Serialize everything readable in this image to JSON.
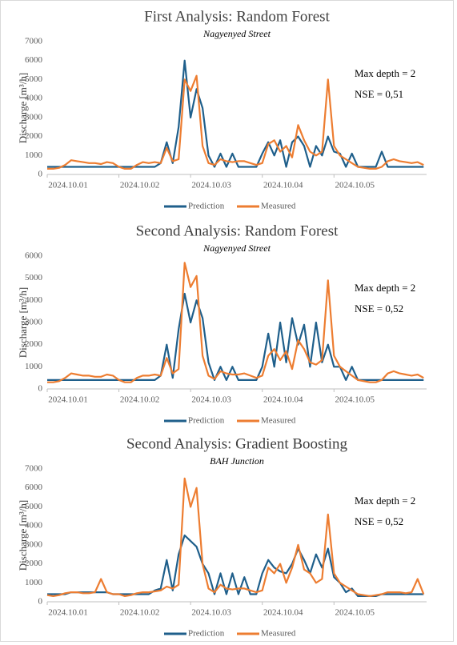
{
  "chart_data": [
    {
      "type": "line",
      "title": "First Analysis: Random Forest",
      "subtitle": "Nagyenyed Street",
      "y_label": "Discharge [m³/h]",
      "annotations": [
        "Max depth = 2",
        "NSE = 0,51"
      ],
      "x": [
        0,
        2,
        4,
        6,
        8,
        10,
        12,
        14,
        16,
        18,
        20,
        22,
        24,
        26,
        28,
        30,
        32,
        34,
        36,
        38,
        40,
        42,
        44,
        46,
        48,
        50,
        52,
        54,
        56,
        58,
        60,
        62,
        64,
        66,
        68,
        70,
        72,
        74,
        76,
        78,
        80,
        82,
        84,
        86,
        88,
        90,
        92,
        94,
        96,
        98,
        100,
        102,
        104,
        106,
        108,
        110,
        112,
        114,
        116,
        118,
        120,
        122,
        124,
        126
      ],
      "xlim": [
        0,
        127
      ],
      "xticks": [
        {
          "value": 0,
          "label": "2024.10.01"
        },
        {
          "value": 24,
          "label": "2024.10.02"
        },
        {
          "value": 48,
          "label": "2024.10.03"
        },
        {
          "value": 72,
          "label": "2024.10.04"
        },
        {
          "value": 96,
          "label": "2024.10.05"
        }
      ],
      "ylim": [
        0,
        7000
      ],
      "yticks": [
        0,
        1000,
        2000,
        3000,
        4000,
        5000,
        6000,
        7000
      ],
      "series": [
        {
          "name": "Prediction",
          "color": "#1f5f8b",
          "values": [
            400,
            400,
            400,
            400,
            400,
            400,
            400,
            400,
            400,
            400,
            400,
            400,
            400,
            400,
            400,
            400,
            400,
            400,
            400,
            600,
            1700,
            600,
            2500,
            6000,
            3000,
            4500,
            3500,
            1000,
            400,
            1100,
            400,
            1100,
            400,
            400,
            400,
            400,
            1100,
            1700,
            1000,
            1800,
            400,
            1700,
            2000,
            1500,
            400,
            1500,
            1000,
            2000,
            1200,
            1100,
            400,
            1100,
            400,
            400,
            400,
            400,
            1200,
            400,
            400,
            400,
            400,
            400,
            400,
            400
          ]
        },
        {
          "name": "Measured",
          "color": "#ed7d31",
          "values": [
            300,
            300,
            350,
            500,
            750,
            700,
            650,
            600,
            600,
            550,
            650,
            600,
            400,
            300,
            300,
            500,
            650,
            600,
            650,
            600,
            1400,
            700,
            800,
            5000,
            4400,
            5200,
            1500,
            600,
            500,
            800,
            700,
            650,
            700,
            700,
            600,
            500,
            600,
            1600,
            1800,
            1200,
            1500,
            900,
            2600,
            1800,
            1200,
            1000,
            1200,
            5000,
            1500,
            1000,
            800,
            600,
            400,
            350,
            300,
            300,
            400,
            700,
            800,
            700,
            650,
            600,
            650,
            500
          ]
        }
      ]
    },
    {
      "type": "line",
      "title": "Second Analysis: Random Forest",
      "subtitle": "Nagyenyed Street",
      "y_label": "Discharge [m³/h]",
      "annotations": [
        "Max depth = 2",
        "NSE = 0,52"
      ],
      "x": [
        0,
        2,
        4,
        6,
        8,
        10,
        12,
        14,
        16,
        18,
        20,
        22,
        24,
        26,
        28,
        30,
        32,
        34,
        36,
        38,
        40,
        42,
        44,
        46,
        48,
        50,
        52,
        54,
        56,
        58,
        60,
        62,
        64,
        66,
        68,
        70,
        72,
        74,
        76,
        78,
        80,
        82,
        84,
        86,
        88,
        90,
        92,
        94,
        96,
        98,
        100,
        102,
        104,
        106,
        108,
        110,
        112,
        114,
        116,
        118,
        120,
        122,
        124,
        126
      ],
      "xlim": [
        0,
        127
      ],
      "xticks": [
        {
          "value": 0,
          "label": "2024.10.01"
        },
        {
          "value": 24,
          "label": "2024.10.02"
        },
        {
          "value": 48,
          "label": "2024.10.03"
        },
        {
          "value": 72,
          "label": "2024.10.04"
        },
        {
          "value": 96,
          "label": "2024.10.05"
        }
      ],
      "ylim": [
        0,
        6000
      ],
      "yticks": [
        0,
        1000,
        2000,
        3000,
        4000,
        5000,
        6000
      ],
      "series": [
        {
          "name": "Prediction",
          "color": "#1f5f8b",
          "values": [
            400,
            400,
            400,
            400,
            400,
            400,
            400,
            400,
            400,
            400,
            400,
            400,
            400,
            400,
            400,
            400,
            400,
            400,
            400,
            600,
            2000,
            500,
            2700,
            4300,
            3000,
            4000,
            3200,
            1200,
            400,
            1000,
            400,
            1000,
            400,
            400,
            400,
            400,
            1000,
            2500,
            1000,
            3000,
            1200,
            3200,
            2000,
            2900,
            1000,
            3000,
            1200,
            2000,
            1000,
            1000,
            400,
            1000,
            400,
            400,
            400,
            400,
            400,
            400,
            400,
            400,
            400,
            400,
            400,
            400
          ]
        },
        {
          "name": "Measured",
          "color": "#ed7d31",
          "values": [
            300,
            300,
            350,
            500,
            700,
            650,
            600,
            600,
            550,
            550,
            650,
            600,
            400,
            300,
            300,
            500,
            600,
            600,
            650,
            600,
            1400,
            700,
            900,
            5700,
            4600,
            5100,
            1500,
            600,
            450,
            800,
            700,
            650,
            650,
            700,
            600,
            500,
            600,
            1500,
            1800,
            1300,
            1700,
            900,
            2200,
            1800,
            1200,
            1100,
            1300,
            4900,
            1500,
            1000,
            800,
            600,
            400,
            350,
            300,
            300,
            400,
            700,
            800,
            700,
            650,
            600,
            650,
            500
          ]
        }
      ]
    },
    {
      "type": "line",
      "title": "Second Analysis: Gradient Boosting",
      "subtitle": "BAH Junction",
      "y_label": "Discharge [m³/h]",
      "annotations": [
        "Max depth = 2",
        "NSE = 0,52"
      ],
      "x": [
        0,
        2,
        4,
        6,
        8,
        10,
        12,
        14,
        16,
        18,
        20,
        22,
        24,
        26,
        28,
        30,
        32,
        34,
        36,
        38,
        40,
        42,
        44,
        46,
        48,
        50,
        52,
        54,
        56,
        58,
        60,
        62,
        64,
        66,
        68,
        70,
        72,
        74,
        76,
        78,
        80,
        82,
        84,
        86,
        88,
        90,
        92,
        94,
        96,
        98,
        100,
        102,
        104,
        106,
        108,
        110,
        112,
        114,
        116,
        118,
        120,
        122,
        124,
        126
      ],
      "xlim": [
        0,
        127
      ],
      "xticks": [
        {
          "value": 0,
          "label": "2024.10.01"
        },
        {
          "value": 24,
          "label": "2024.10.02"
        },
        {
          "value": 48,
          "label": "2024.10.03"
        },
        {
          "value": 72,
          "label": "2024.10.04"
        },
        {
          "value": 96,
          "label": "2024.10.05"
        }
      ],
      "ylim": [
        0,
        7000
      ],
      "yticks": [
        0,
        1000,
        2000,
        3000,
        4000,
        5000,
        6000,
        7000
      ],
      "series": [
        {
          "name": "Prediction",
          "color": "#1f5f8b",
          "values": [
            400,
            400,
            400,
            400,
            500,
            500,
            500,
            500,
            500,
            500,
            500,
            400,
            400,
            400,
            400,
            400,
            400,
            400,
            600,
            700,
            2200,
            600,
            2500,
            3500,
            3200,
            2900,
            2000,
            1500,
            400,
            1500,
            400,
            1500,
            400,
            1300,
            400,
            400,
            1500,
            2200,
            1800,
            1600,
            1500,
            2000,
            2800,
            2200,
            1500,
            2500,
            1800,
            2800,
            1300,
            1000,
            500,
            700,
            300,
            300,
            300,
            300,
            400,
            400,
            400,
            400,
            400,
            400,
            400,
            400
          ]
        },
        {
          "name": "Measured",
          "color": "#ed7d31",
          "values": [
            350,
            300,
            350,
            450,
            500,
            500,
            450,
            450,
            500,
            1200,
            500,
            400,
            400,
            300,
            350,
            450,
            500,
            500,
            550,
            600,
            800,
            700,
            900,
            6500,
            5000,
            6000,
            2000,
            700,
            500,
            900,
            700,
            650,
            700,
            700,
            600,
            500,
            600,
            1800,
            1500,
            2000,
            1000,
            1800,
            3000,
            1700,
            1500,
            1000,
            1200,
            4600,
            1500,
            1000,
            800,
            600,
            400,
            350,
            300,
            350,
            400,
            500,
            500,
            500,
            450,
            500,
            1200,
            400
          ]
        }
      ]
    }
  ]
}
